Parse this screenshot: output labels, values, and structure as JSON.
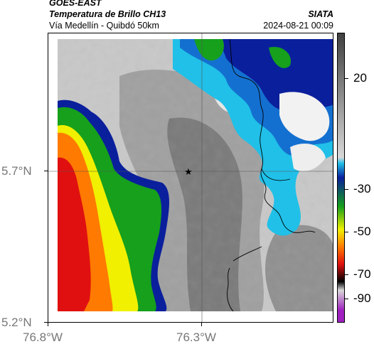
{
  "header": {
    "satellite": "GOES-EAST",
    "product": "Temperatura de Brillo CH13",
    "region": "Vía Medellín - Quibdó 50km",
    "source": "SIATA",
    "datetime": "2024-08-21 00:09"
  },
  "map": {
    "y_ticks": [
      "5.7°N",
      "5.2°N"
    ],
    "x_ticks": [
      "76.8°W",
      "76.3°W"
    ],
    "gridlines": true,
    "marker": "star-icon"
  },
  "colorbar": {
    "labels": [
      "20",
      "-30",
      "-50",
      "-70",
      "-90"
    ],
    "colors": {
      "cold_magenta": "#a020c0",
      "black": "#000000",
      "red": "#e01010",
      "orange": "#ff7a00",
      "yellow": "#f0f000",
      "green": "#16a01c",
      "blue": "#0a1f9c",
      "cyan": "#20c0e8",
      "gray_light": "#d8d8d8",
      "gray_dark": "#404040"
    }
  }
}
